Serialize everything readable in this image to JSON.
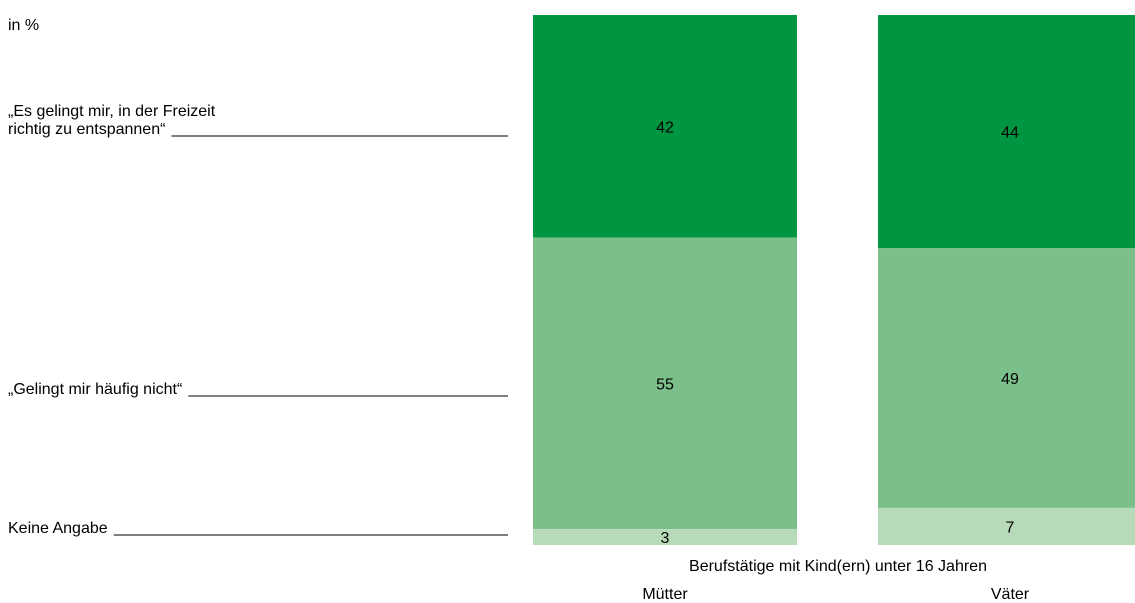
{
  "chart_data": {
    "type": "stacked_bar",
    "subtitle": "in %",
    "x_label": "Berufstätige mit Kind(ern) unter 16 Jahren",
    "categories": [
      "Mütter",
      "Väter"
    ],
    "ylim": [
      0,
      100
    ],
    "series": [
      {
        "name": "„Es gelingt mir, in der Freizeit richtig zu entspannen“",
        "color": "#009540",
        "values": [
          42,
          44
        ]
      },
      {
        "name": "„Gelingt mir häufig nicht“",
        "color": "#7bbf8a",
        "values": [
          55,
          49
        ]
      },
      {
        "name": "Keine Angabe",
        "color": "#b7dbb9",
        "values": [
          3,
          7
        ]
      }
    ]
  }
}
